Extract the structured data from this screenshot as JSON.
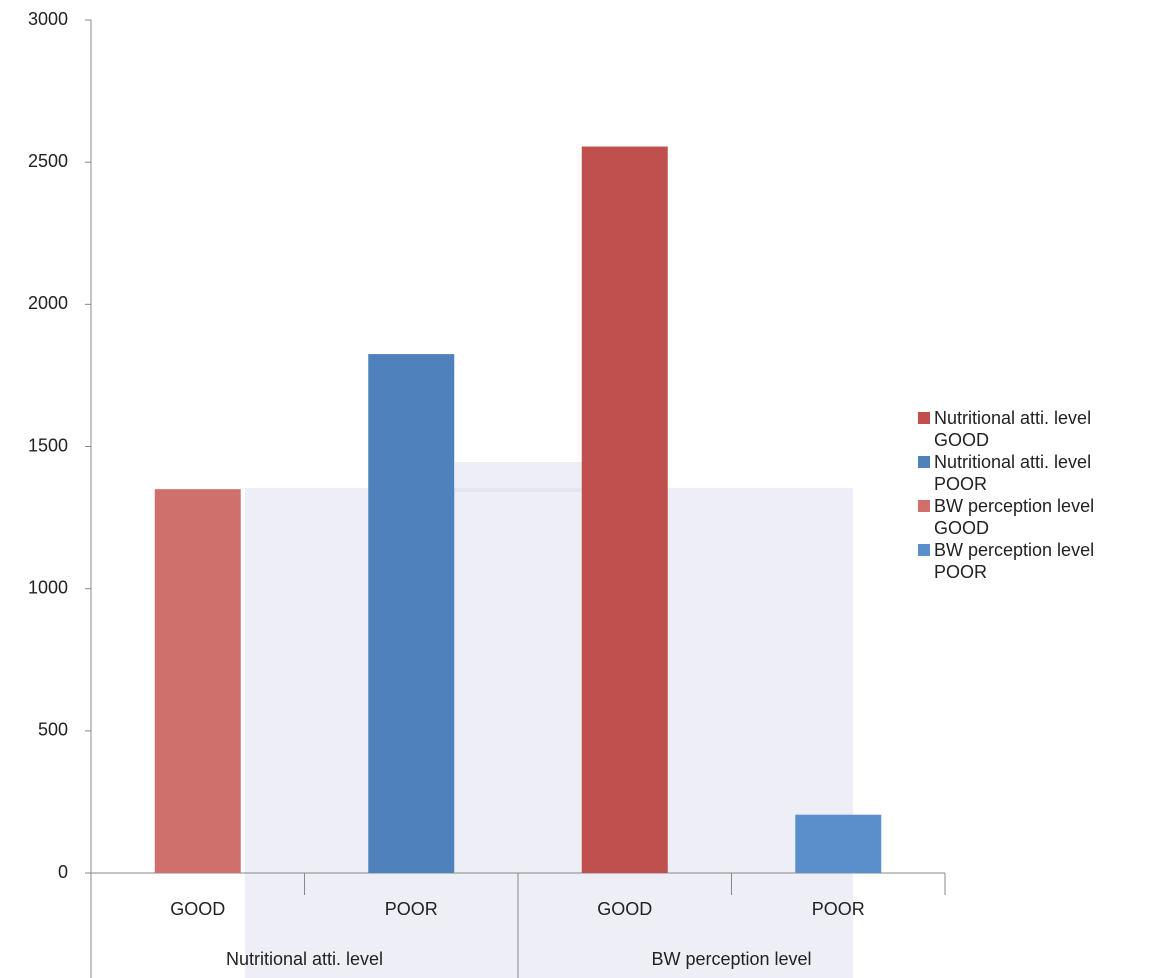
{
  "chart_data": {
    "type": "bar",
    "categories": [
      "GOOD",
      "POOR",
      "GOOD",
      "POOR"
    ],
    "category_groups": [
      {
        "label": "Nutritional atti. level",
        "span": 2
      },
      {
        "label": "BW perception level",
        "span": 2
      }
    ],
    "series": [
      {
        "name": "Nutritional atti. level GOOD",
        "color": "#c0504d",
        "values": [
          null,
          null,
          2555,
          null
        ]
      },
      {
        "name": "Nutritional atti. level POOR",
        "color": "#4f81bd",
        "values": [
          null,
          1825,
          null,
          null
        ]
      },
      {
        "name": "BW perception level GOOD",
        "color": "#d0706c",
        "values": [
          1350,
          null,
          null,
          null
        ]
      },
      {
        "name": "BW perception level POOR",
        "color": "#5b8fcc",
        "values": [
          null,
          null,
          null,
          205
        ]
      }
    ],
    "ylim": [
      0,
      3000
    ],
    "yticks": [
      0,
      500,
      1000,
      1500,
      2000,
      2500,
      3000
    ],
    "grid": false,
    "legend": "right"
  }
}
